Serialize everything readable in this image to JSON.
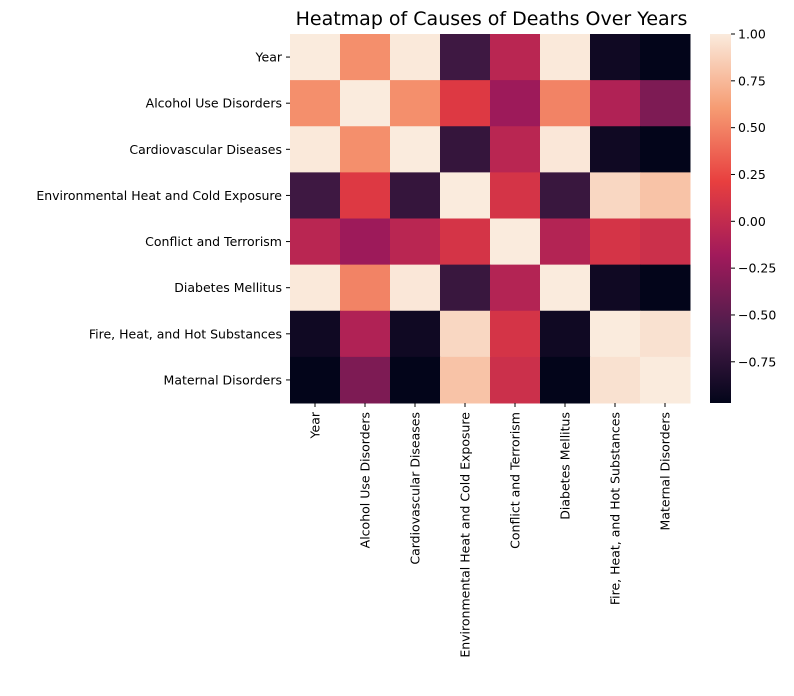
{
  "chart_data": {
    "type": "heatmap",
    "title": "Heatmap of Causes of Deaths Over Years",
    "rows": [
      "Year",
      "Alcohol Use Disorders",
      "Cardiovascular Diseases",
      "Environmental Heat and Cold Exposure",
      "Conflict and Terrorism",
      "Diabetes Mellitus",
      "Fire, Heat, and Hot Substances",
      "Maternal Disorders"
    ],
    "columns": [
      "Year",
      "Alcohol Use Disorders",
      "Cardiovascular Diseases",
      "Environmental Heat and Cold Exposure",
      "Conflict and Terrorism",
      "Diabetes Mellitus",
      "Fire, Heat, and Hot Substances",
      "Maternal Disorders"
    ],
    "values": [
      [
        1.0,
        0.55,
        0.99,
        -0.65,
        -0.05,
        0.99,
        -0.9,
        -0.97
      ],
      [
        0.55,
        1.0,
        0.55,
        0.15,
        -0.2,
        0.5,
        -0.1,
        -0.35
      ],
      [
        0.99,
        0.55,
        1.0,
        -0.7,
        -0.05,
        0.98,
        -0.9,
        -0.97
      ],
      [
        -0.65,
        0.15,
        -0.7,
        1.0,
        0.1,
        -0.68,
        0.9,
        0.8
      ],
      [
        -0.05,
        -0.2,
        -0.05,
        0.1,
        1.0,
        -0.08,
        0.1,
        0.05
      ],
      [
        0.99,
        0.5,
        0.98,
        -0.68,
        -0.08,
        1.0,
        -0.9,
        -0.97
      ],
      [
        -0.9,
        -0.1,
        -0.9,
        0.9,
        0.1,
        -0.9,
        1.0,
        0.95
      ],
      [
        -0.97,
        -0.35,
        -0.97,
        0.8,
        0.05,
        -0.97,
        0.95,
        1.0
      ]
    ],
    "colorbar": {
      "vmin": -0.97,
      "vmax": 1.0,
      "ticks": [
        1.0,
        0.75,
        0.5,
        0.25,
        0.0,
        -0.25,
        -0.5,
        -0.75
      ],
      "tick_labels": [
        "1.00",
        "0.75",
        "0.50",
        "0.25",
        "0.00",
        "−0.25",
        "−0.50",
        "−0.75"
      ],
      "colormap": "rocket",
      "colormap_stops": [
        "#03051a",
        "#4c1d4b",
        "#a11a5b",
        "#e83f3f",
        "#f69c73",
        "#faebdd"
      ]
    },
    "grid": false
  }
}
